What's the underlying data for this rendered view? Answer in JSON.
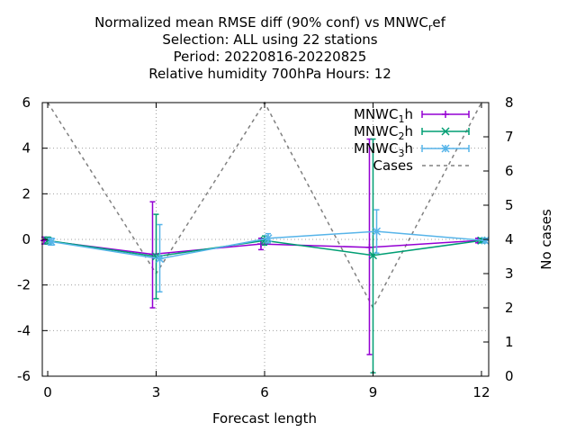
{
  "chart_data": {
    "type": "line",
    "title_lines": [
      "Normalized mean RMSE diff (90% conf) vs MNWC_ref",
      "Selection: ALL using    22 stations",
      "Period: 20220816-20220825",
      "Relative humidity 700hPa   Hours:  12"
    ],
    "xlabel": "Forecast length",
    "ylabel": "",
    "y2label": "No cases",
    "xlim": [
      -0.15,
      12.2
    ],
    "ylim": [
      -6,
      6
    ],
    "y2lim": [
      0,
      8
    ],
    "xticks": [
      0,
      3,
      6,
      9,
      12
    ],
    "yticks": [
      -6,
      -4,
      -2,
      0,
      2,
      4,
      6
    ],
    "y2ticks": [
      0,
      1,
      2,
      3,
      4,
      5,
      6,
      7,
      8
    ],
    "grid": true,
    "legend_position": "top-right",
    "series": [
      {
        "name": "MNWC_1h",
        "color": "#9400d3",
        "marker": "plus",
        "points": [
          {
            "x": -0.1,
            "y": -0.05,
            "low": -0.2,
            "high": 0.1
          },
          {
            "x": 2.9,
            "y": -0.65,
            "low": -3.0,
            "high": 1.65
          },
          {
            "x": 5.9,
            "y": -0.2,
            "low": -0.45,
            "high": 0.05
          },
          {
            "x": 8.9,
            "y": -0.35,
            "low": -5.05,
            "high": 4.4
          },
          {
            "x": 11.9,
            "y": -0.05,
            "low": -0.15,
            "high": 0.05
          }
        ]
      },
      {
        "name": "MNWC_2h",
        "color": "#009e73",
        "marker": "x",
        "points": [
          {
            "x": 0.0,
            "y": -0.05,
            "low": -0.2,
            "high": 0.1
          },
          {
            "x": 3.0,
            "y": -0.75,
            "low": -2.6,
            "high": 1.1
          },
          {
            "x": 6.0,
            "y": -0.05,
            "low": -0.25,
            "high": 0.15
          },
          {
            "x": 9.0,
            "y": -0.7,
            "low": -5.85,
            "high": 4.4
          },
          {
            "x": 12.0,
            "y": -0.05,
            "low": -0.15,
            "high": 0.05
          }
        ]
      },
      {
        "name": "MNWC_3h",
        "color": "#56b4e9",
        "marker": "star",
        "points": [
          {
            "x": 0.1,
            "y": -0.1,
            "low": -0.25,
            "high": 0.05
          },
          {
            "x": 3.1,
            "y": -0.85,
            "low": -2.3,
            "high": 0.65
          },
          {
            "x": 6.1,
            "y": 0.05,
            "low": -0.15,
            "high": 0.25
          },
          {
            "x": 9.1,
            "y": 0.35,
            "low": -0.6,
            "high": 1.3
          },
          {
            "x": 12.1,
            "y": -0.05,
            "low": -0.15,
            "high": 0.05
          }
        ]
      }
    ],
    "cases_series": {
      "name": "Cases",
      "color": "#808080",
      "style": "dashed",
      "axis": "y2",
      "x": [
        0,
        3,
        6,
        9,
        12
      ],
      "values": [
        8,
        3,
        8,
        2,
        8
      ]
    }
  }
}
